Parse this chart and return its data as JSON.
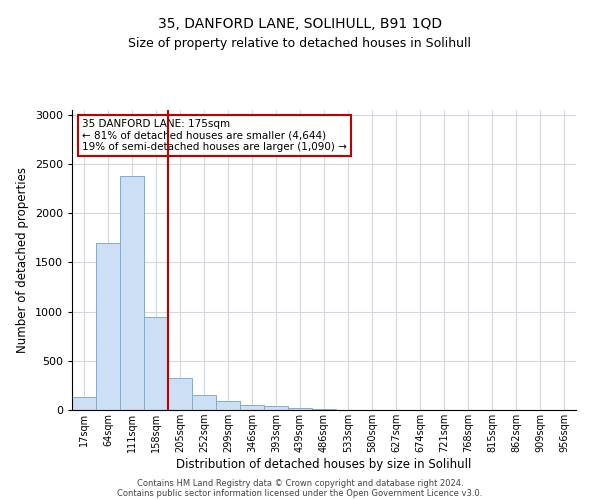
{
  "title1": "35, DANFORD LANE, SOLIHULL, B91 1QD",
  "title2": "Size of property relative to detached houses in Solihull",
  "xlabel": "Distribution of detached houses by size in Solihull",
  "ylabel": "Number of detached properties",
  "categories": [
    "17sqm",
    "64sqm",
    "111sqm",
    "158sqm",
    "205sqm",
    "252sqm",
    "299sqm",
    "346sqm",
    "393sqm",
    "439sqm",
    "486sqm",
    "533sqm",
    "580sqm",
    "627sqm",
    "674sqm",
    "721sqm",
    "768sqm",
    "815sqm",
    "862sqm",
    "909sqm",
    "956sqm"
  ],
  "values": [
    130,
    1700,
    2380,
    950,
    330,
    150,
    90,
    55,
    40,
    25,
    15,
    5,
    3,
    2,
    1,
    0,
    0,
    0,
    0,
    0,
    0
  ],
  "bar_color": "#ccdff5",
  "bar_edge_color": "#7bafd4",
  "vline_color": "#c00000",
  "vline_x_index": 3.5,
  "annotation_text": "35 DANFORD LANE: 175sqm\n← 81% of detached houses are smaller (4,644)\n19% of semi-detached houses are larger (1,090) →",
  "annotation_box_color": "#c00000",
  "ylim": [
    0,
    3050
  ],
  "yticks": [
    0,
    500,
    1000,
    1500,
    2000,
    2500,
    3000
  ],
  "footer1": "Contains HM Land Registry data © Crown copyright and database right 2024.",
  "footer2": "Contains public sector information licensed under the Open Government Licence v3.0.",
  "bg_color": "#ffffff",
  "grid_color": "#d0d8e8",
  "title1_fontsize": 10,
  "title2_fontsize": 9
}
